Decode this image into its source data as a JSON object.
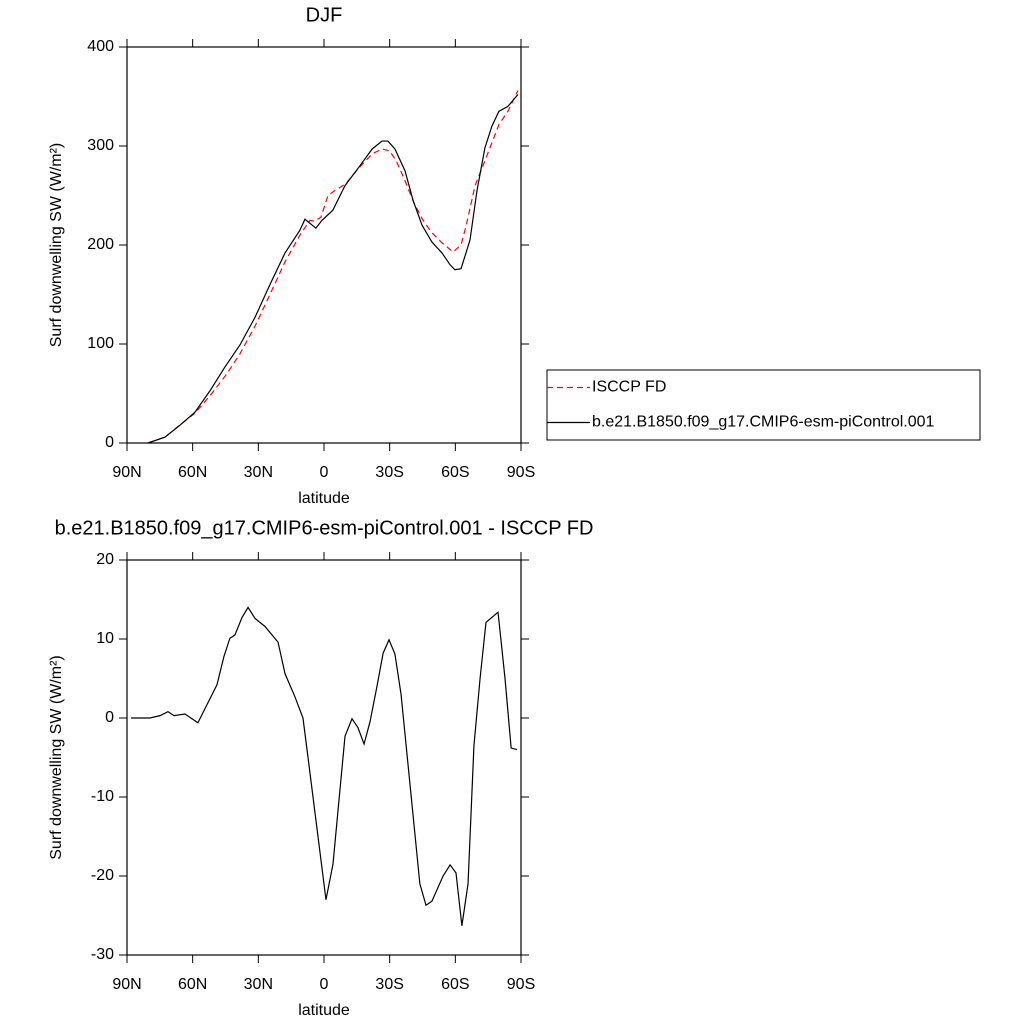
{
  "chart_data": [
    {
      "type": "line",
      "title": "DJF",
      "xlabel": "latitude",
      "ylabel": "Surf downwelling SW (W/m²)",
      "xlim": [
        90,
        -90
      ],
      "ylim": [
        0,
        400
      ],
      "xticks": [
        {
          "value": 90,
          "label": "90N"
        },
        {
          "value": 60,
          "label": "60N"
        },
        {
          "value": 30,
          "label": "30N"
        },
        0,
        {
          "value": -30,
          "label": "30S"
        },
        {
          "value": -60,
          "label": "60S"
        },
        {
          "value": -90,
          "label": "90S"
        }
      ],
      "yticks": [
        0,
        100,
        200,
        300,
        400
      ],
      "legend": "right",
      "series": [
        {
          "name": "ISCCP FD",
          "color": "#ff0000",
          "line_style": "dashed",
          "x": [
            80.4,
            72.6,
            66,
            59,
            52,
            45,
            38.4,
            31.5,
            24.7,
            17.8,
            11,
            6.4,
            4.5,
            1.4,
            -1.8,
            -5,
            -10,
            -16,
            -22,
            -26.5,
            -30,
            -33,
            -37,
            -41,
            -45,
            -49,
            -54,
            -59,
            -62.6,
            -65,
            -69,
            -73.5,
            -77,
            -80,
            -84,
            -88.6
          ],
          "values": [
            0,
            6,
            18,
            30,
            48,
            68,
            90,
            118,
            150,
            183,
            210,
            225,
            224,
            228,
            250,
            255,
            262,
            278,
            292,
            297,
            295,
            285,
            265,
            243,
            226,
            213,
            202,
            193,
            200,
            220,
            260,
            285,
            305,
            322,
            335,
            356
          ]
        },
        {
          "name": "b.e21.B1850.f09_g17.CMIP6-esm-piControl.001",
          "color": "#000000",
          "line_style": "solid",
          "x": [
            80.4,
            72.6,
            65.8,
            59,
            52,
            45.2,
            38.4,
            31.5,
            24.7,
            17.8,
            11,
            8.7,
            3.7,
            0.9,
            -4,
            -9.6,
            -16.4,
            -22,
            -26.5,
            -29.2,
            -32.4,
            -37,
            -40.7,
            -44.8,
            -49.3,
            -53.9,
            -57.6,
            -59.8,
            -62.6,
            -66.7,
            -69.9,
            -73.5,
            -76.7,
            -79.9,
            -84,
            -88.6
          ],
          "values": [
            0,
            6,
            18,
            31,
            53,
            77,
            99,
            127,
            160,
            192,
            215,
            226,
            217,
            225,
            235,
            260,
            280,
            297,
            305,
            305,
            297,
            275,
            245,
            220,
            203,
            192,
            180,
            175,
            176,
            205,
            255,
            298,
            320,
            335,
            340,
            352
          ]
        }
      ]
    },
    {
      "type": "line",
      "title": "b.e21.B1850.f09_g17.CMIP6-esm-piControl.001 - ISCCP FD",
      "xlabel": "latitude",
      "ylabel": "Surf downwelling SW (W/m²)",
      "xlim": [
        90,
        -90
      ],
      "ylim": [
        -30,
        20
      ],
      "xticks": [
        {
          "value": 90,
          "label": "90N"
        },
        {
          "value": 60,
          "label": "60N"
        },
        {
          "value": 30,
          "label": "30N"
        },
        0,
        {
          "value": -30,
          "label": "30S"
        },
        {
          "value": -60,
          "label": "60S"
        },
        {
          "value": -90,
          "label": "90S"
        }
      ],
      "yticks": [
        -30,
        -20,
        -10,
        0,
        10,
        20
      ],
      "series": [
        {
          "color": "#000000",
          "line_style": "solid",
          "x": [
            88.2,
            79.5,
            74.9,
            71.3,
            68.5,
            63.5,
            57.6,
            48.9,
            45.7,
            43,
            40.7,
            37.5,
            34.7,
            31.5,
            27,
            21,
            17.8,
            13.3,
            9.6,
            7.3,
            -0.9,
            -4.1,
            -9.6,
            -12.8,
            -15.5,
            -18.3,
            -21,
            -24.2,
            -27,
            -29.7,
            -32.4,
            -35.2,
            -43.8,
            -46.6,
            -49.3,
            -54.4,
            -57.6,
            -60.3,
            -63,
            -65.8,
            -68.5,
            -71.3,
            -74,
            -79.5,
            -82.7,
            -85.5,
            -88.2
          ],
          "values": [
            0,
            0,
            0.3,
            0.8,
            0.3,
            0.5,
            -0.6,
            4.2,
            7.8,
            10.1,
            10.5,
            12.7,
            14,
            12.6,
            11.6,
            9.6,
            5.6,
            2.7,
            0,
            -5,
            -23,
            -18.5,
            -2.3,
            -0.1,
            -1.2,
            -3.3,
            -0.5,
            4,
            8.2,
            9.9,
            8.1,
            3,
            -21,
            -23.7,
            -23.2,
            -20,
            -18.6,
            -19.6,
            -26.3,
            -21,
            -3.5,
            5,
            12.1,
            13.4,
            5,
            -3.8,
            -4
          ]
        }
      ]
    }
  ]
}
